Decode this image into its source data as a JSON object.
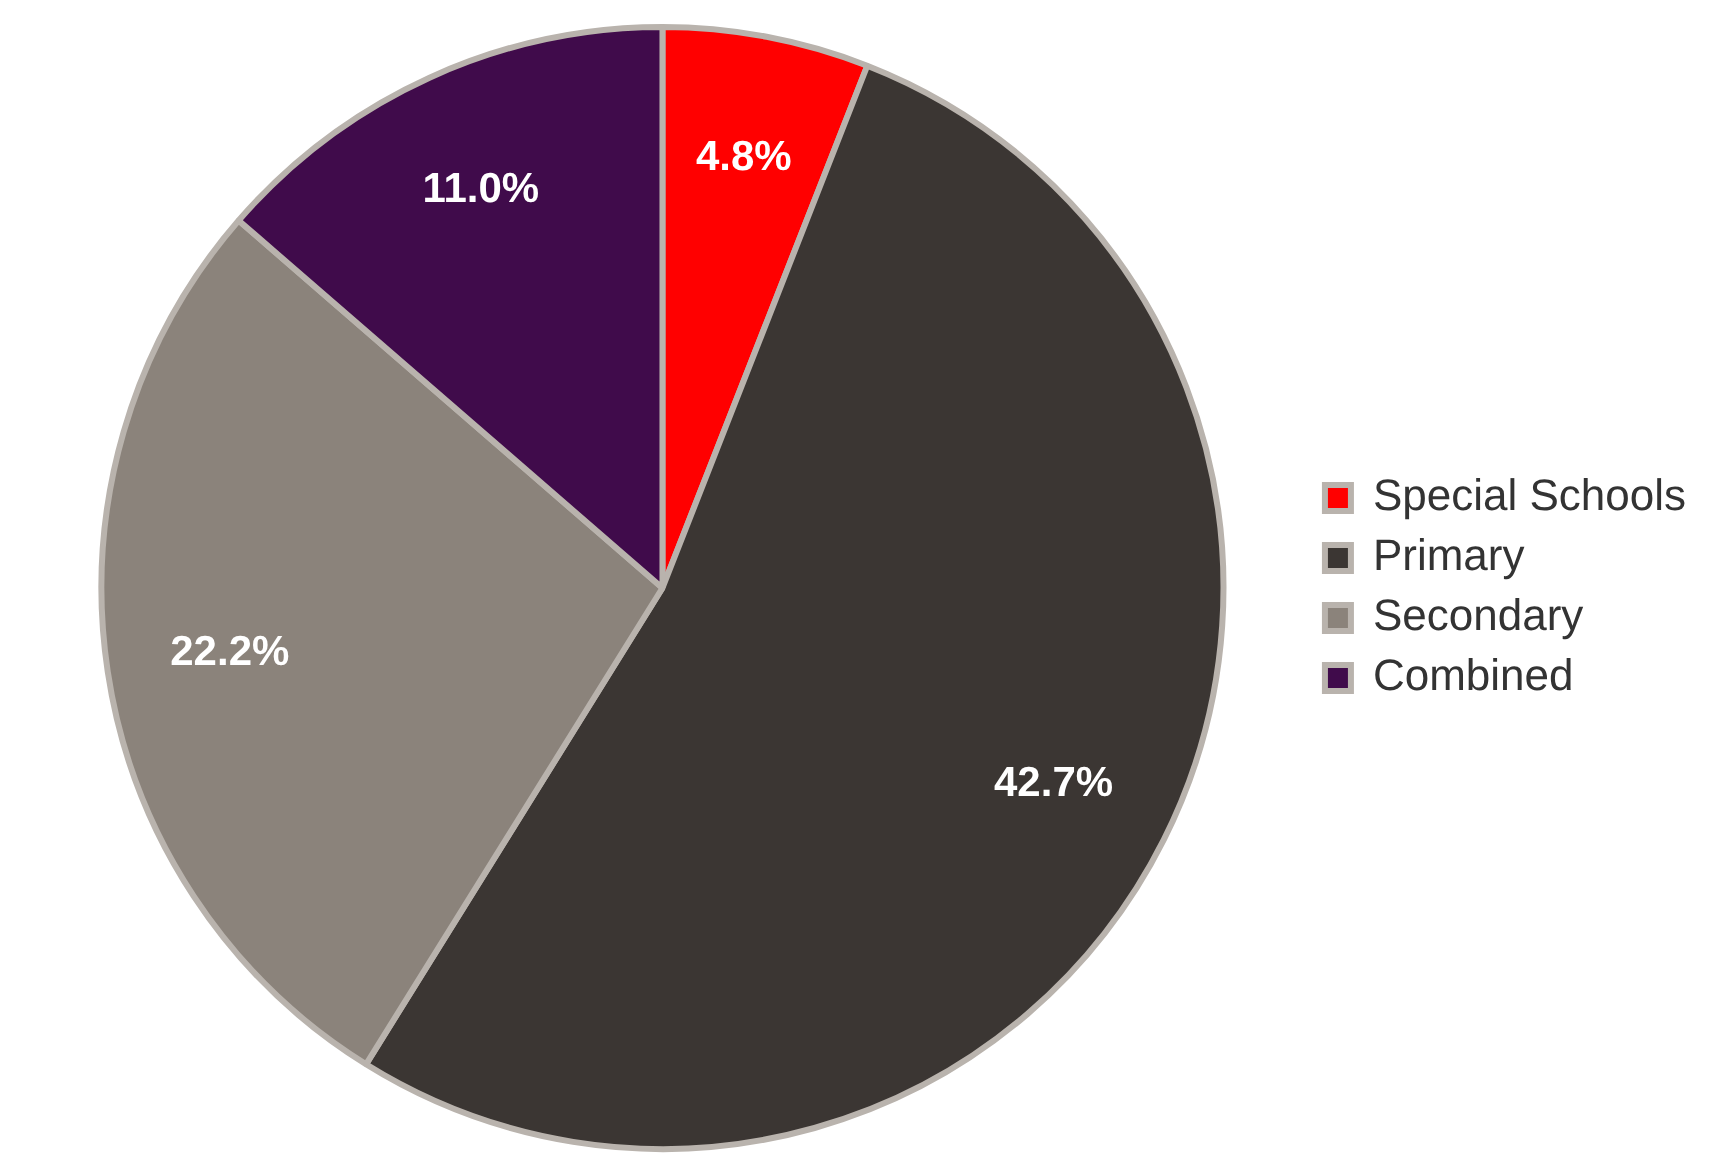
{
  "chart_data": {
    "type": "pie",
    "categories": [
      "Special Schools",
      "Primary",
      "Secondary",
      "Combined"
    ],
    "values": [
      4.8,
      42.7,
      22.2,
      11.0
    ],
    "colors": [
      "#ff0000",
      "#3b3633",
      "#8b837b",
      "#400b4b"
    ],
    "value_labels": [
      "4.8%",
      "42.7%",
      "22.2%",
      "11.0%"
    ],
    "legend": "right"
  }
}
